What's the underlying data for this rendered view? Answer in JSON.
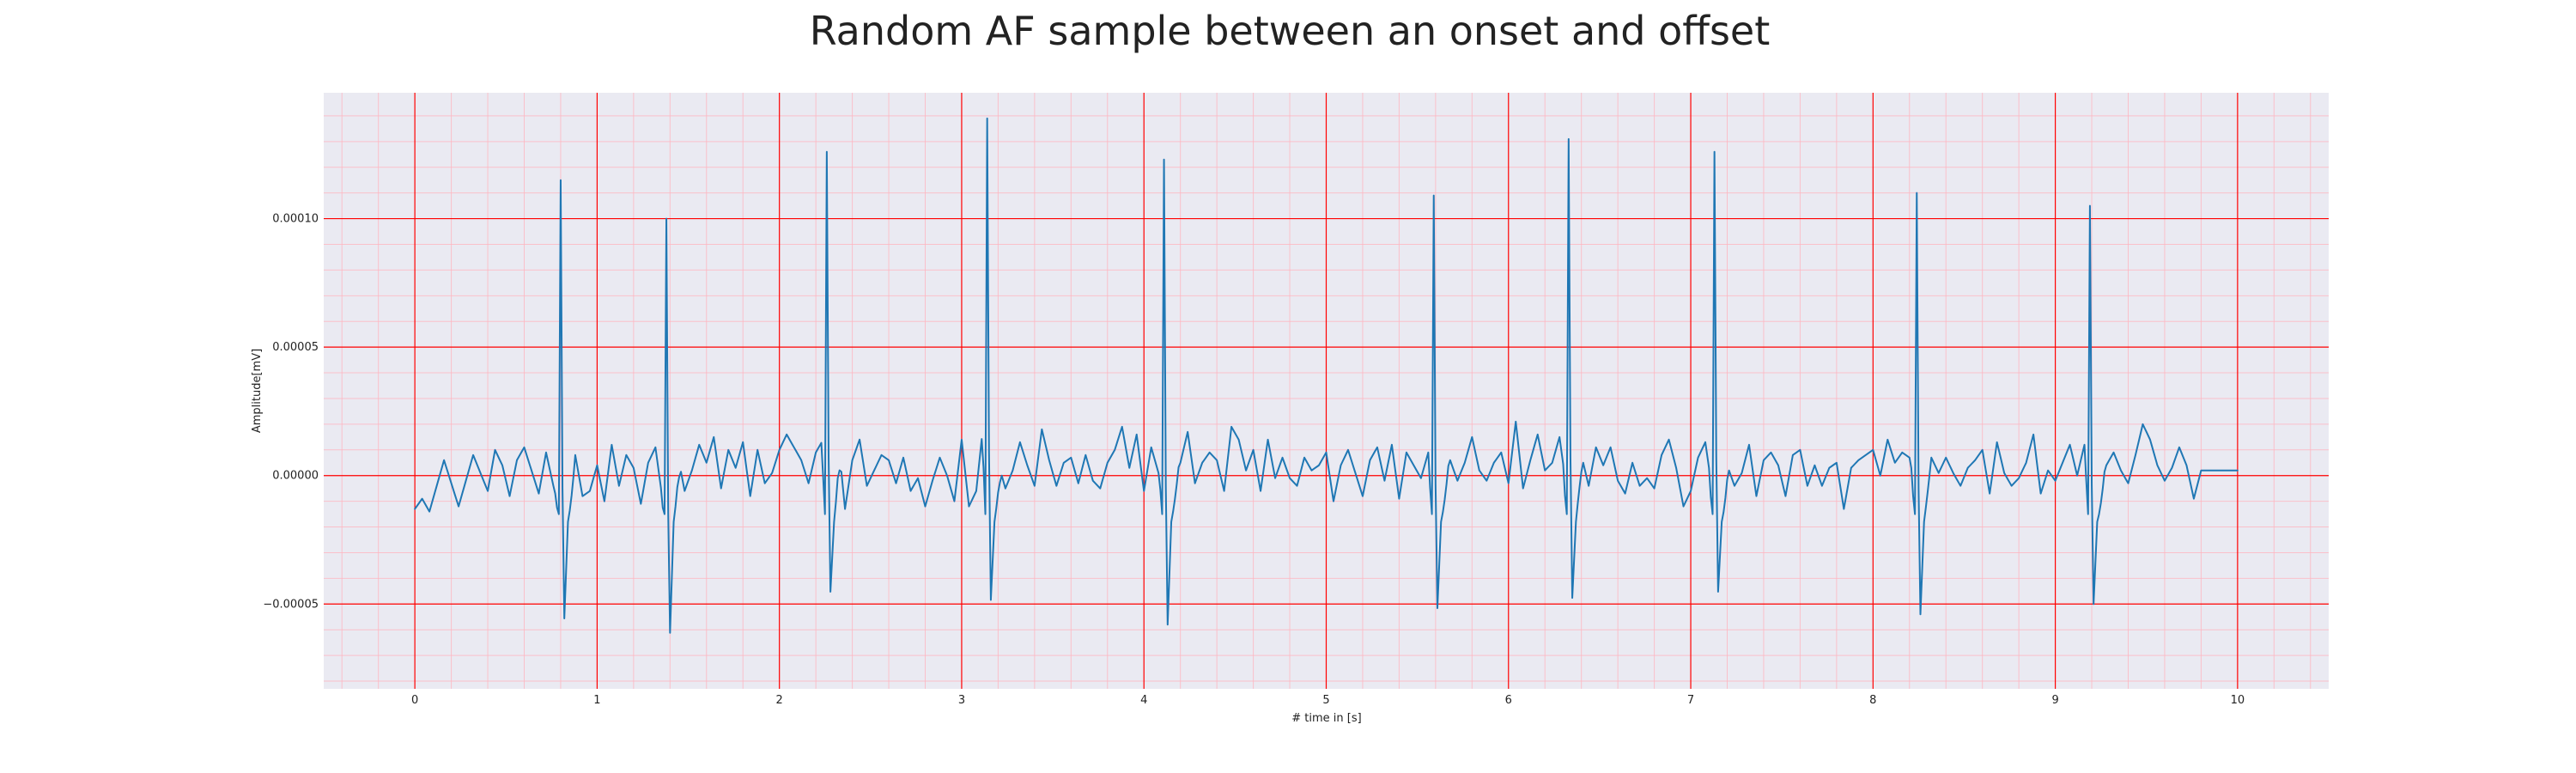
{
  "chart_data": {
    "type": "line",
    "title": "Random AF sample between an onset and offset",
    "xlabel": "# time in [s]",
    "ylabel": "Amplitude[mV]",
    "xlim": [
      -0.5,
      10.5
    ],
    "ylim": [
      -8.3e-05,
      0.000149
    ],
    "x_ticks": [
      0,
      1,
      2,
      3,
      4,
      5,
      6,
      7,
      8,
      9,
      10
    ],
    "x_tick_labels": [
      "0",
      "1",
      "2",
      "3",
      "4",
      "5",
      "6",
      "7",
      "8",
      "9",
      "10"
    ],
    "y_ticks": [
      -5e-05,
      0.0,
      5e-05,
      0.0001
    ],
    "y_tick_labels": [
      "−0.00005",
      "0.00000",
      "0.00005",
      "0.00010"
    ],
    "grid": true,
    "minor_grid": true,
    "legend": "none",
    "colors": {
      "line": "#1f77b4",
      "plot_background": "#eaeaf2",
      "major_grid": "#ff0000",
      "minor_grid": "#ffb6c1"
    },
    "peaks": [
      {
        "t": 0.8,
        "max": 0.000115,
        "min": -6.5e-05
      },
      {
        "t": 1.38,
        "max": 0.0001,
        "min": -7.2e-05
      },
      {
        "t": 2.26,
        "max": 0.000126,
        "min": -5.2e-05
      },
      {
        "t": 3.14,
        "max": 0.000139,
        "min": -5.6e-05
      },
      {
        "t": 4.11,
        "max": 0.000123,
        "min": -6.8e-05
      },
      {
        "t": 5.59,
        "max": 0.000109,
        "min": -6e-05
      },
      {
        "t": 6.33,
        "max": 0.000131,
        "min": -5.5e-05
      },
      {
        "t": 7.13,
        "max": 0.000126,
        "min": -5.2e-05
      },
      {
        "t": 8.24,
        "max": 0.00011,
        "min": -6.3e-05
      },
      {
        "t": 9.19,
        "max": 0.000105,
        "min": -5.8e-05
      }
    ],
    "series": [
      {
        "x_start": 0.0,
        "x_step": 0.04,
        "values": [
          -1.3e-05,
          -9e-06,
          -1.4e-05,
          -4e-06,
          6e-06,
          -3e-06,
          -1.2e-05,
          -2e-06,
          8e-06,
          1e-06,
          -6e-06,
          1e-05,
          4e-06,
          -8e-06,
          6e-06,
          1.1e-05,
          2e-06,
          -7e-06,
          9e-06,
          -4e-06,
          -1.6e-05,
          -3e-06,
          8e-06,
          -8e-06,
          -6e-06,
          4e-06,
          -1e-05,
          1.2e-05,
          -4e-06,
          8e-06,
          3e-06,
          -1.1e-05,
          5e-06,
          1.1e-05,
          -1e-05,
          -3e-06,
          9e-06,
          -6e-06,
          2e-06,
          1.2e-05,
          5e-06,
          1.5e-05,
          -5e-06,
          1e-05,
          3e-06,
          1.3e-05,
          -8e-06,
          1e-05,
          -3e-06,
          1e-06,
          1e-05,
          1.6e-05,
          1.1e-05,
          6e-06,
          -3e-06,
          9e-06,
          1.4e-05,
          3e-06,
          1.6e-05,
          -1.3e-05,
          6e-06,
          1.4e-05,
          -4e-06,
          2e-06,
          8e-06,
          6e-06,
          -3e-06,
          7e-06,
          -6e-06,
          -1e-06,
          -1.2e-05,
          -2e-06,
          7e-06,
          0.0,
          -1e-05,
          1.4e-05,
          -1.2e-05,
          -6e-06,
          2.1e-05,
          -1e-06,
          5e-06,
          -5e-06,
          2e-06,
          1.3e-05,
          4e-06,
          -4e-06,
          1.8e-05,
          6e-06,
          -4e-06,
          5e-06,
          7e-06,
          -3e-06,
          8e-06,
          -2e-06,
          -5e-06,
          5e-06,
          1e-05,
          1.9e-05,
          3e-06,
          1.6e-05,
          -6e-06,
          1.1e-05,
          1e-06,
          1.3e-05,
          -2e-06,
          5e-06,
          1.7e-05,
          -3e-06,
          5e-06,
          9e-06,
          6e-06,
          -6e-06,
          1.9e-05,
          1.4e-05,
          2e-06,
          1e-05,
          -6e-06,
          1.4e-05,
          -1e-06,
          7e-06,
          -1e-06,
          -4e-06,
          7e-06,
          2e-06,
          4e-06,
          9e-06,
          -1e-05,
          4e-06,
          1e-05,
          1e-06,
          -8e-06,
          6e-06,
          1.1e-05,
          -2e-06,
          1.2e-05,
          -9e-06,
          9e-06,
          4e-06,
          -1e-06,
          9e-06,
          -6e-06,
          -3e-06,
          6e-06,
          -2e-06,
          5e-06,
          1.5e-05,
          2e-06,
          -2e-06,
          5e-06,
          9e-06,
          -3e-06,
          2.1e-05,
          -5e-06,
          6e-06,
          1.6e-05,
          2e-06,
          5e-06,
          1.5e-05,
          -6e-06,
          1.3e-05,
          8e-06,
          -4e-06,
          1.1e-05,
          4e-06,
          1.1e-05,
          -2e-06,
          -7e-06,
          5e-06,
          -4e-06,
          -1e-06,
          -5e-06,
          8e-06,
          1.4e-05,
          3e-06,
          -1.2e-05,
          -6e-06,
          7e-06,
          1.3e-05,
          -7e-06,
          -1e-05,
          4e-06,
          -4e-06,
          1e-06,
          1.2e-05,
          -8e-06,
          6e-06,
          9e-06,
          4e-06,
          -8e-06,
          8e-06,
          1e-05,
          -4e-06,
          4e-06,
          -4e-06,
          3e-06,
          5e-06,
          -1.3e-05,
          3e-06,
          6e-06,
          8e-06,
          1e-05,
          0.0,
          1.4e-05,
          5e-06,
          9e-06,
          7e-06,
          -9e-06,
          4e-06,
          7e-06,
          1e-06,
          7e-06,
          1e-06,
          -4e-06,
          3e-06,
          6e-06,
          1e-05,
          -7e-06,
          1.3e-05,
          1e-06,
          -4e-06,
          -1e-06,
          5e-06,
          1.6e-05,
          -7e-06,
          2e-06,
          -2e-06,
          5e-06,
          1.2e-05,
          0.0,
          1.2e-05,
          7e-06,
          -6e-06,
          4e-06,
          9e-06,
          2e-06,
          -3e-06,
          8e-06,
          2e-05,
          1.4e-05,
          4e-06,
          -2e-06,
          3e-06,
          1.1e-05,
          4e-06,
          -9e-06,
          2e-06
        ]
      }
    ]
  }
}
